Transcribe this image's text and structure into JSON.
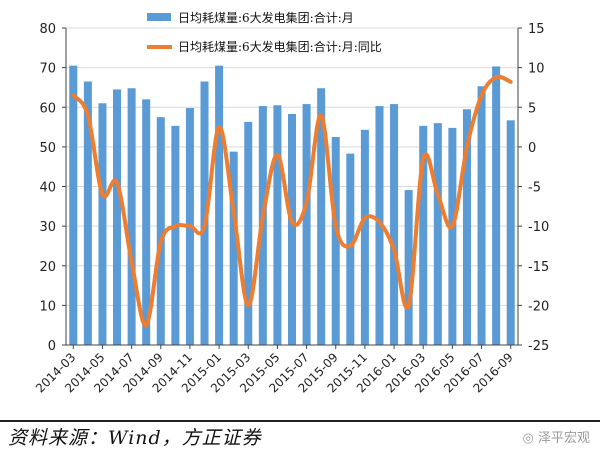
{
  "chart_data": {
    "type": "bar+line",
    "x": [
      "2014-03",
      "2014-04",
      "2014-05",
      "2014-06",
      "2014-07",
      "2014-08",
      "2014-09",
      "2014-10",
      "2014-11",
      "2014-12",
      "2015-01",
      "2015-02",
      "2015-03",
      "2015-04",
      "2015-05",
      "2015-06",
      "2015-07",
      "2015-08",
      "2015-09",
      "2015-10",
      "2015-11",
      "2015-12",
      "2016-01",
      "2016-02",
      "2016-03",
      "2016-04",
      "2016-05",
      "2016-06",
      "2016-07",
      "2016-08",
      "2016-09"
    ],
    "xticks": [
      "2014-03",
      "2014-05",
      "2014-07",
      "2014-09",
      "2014-11",
      "2015-01",
      "2015-03",
      "2015-05",
      "2015-07",
      "2015-09",
      "2015-11",
      "2016-01",
      "2016-03",
      "2016-05",
      "2016-07",
      "2016-09"
    ],
    "series": [
      {
        "name": "日均耗煤量:6大发电集团:合计:月",
        "type": "bar",
        "axis": "left",
        "values": [
          70.5,
          66.5,
          61,
          64.5,
          64.8,
          62,
          57.5,
          55.3,
          59.8,
          66.5,
          70.5,
          48.8,
          56.3,
          60.3,
          60.5,
          58.3,
          60.8,
          64.8,
          52.5,
          48.3,
          54.3,
          60.3,
          60.8,
          39.1,
          55.3,
          56,
          54.8,
          59.5,
          65.3,
          70.3,
          56.7
        ]
      },
      {
        "name": "日均耗煤量:6大发电集团:合计:月:同比",
        "type": "line",
        "axis": "right",
        "values": [
          6.5,
          4,
          -6,
          -4.5,
          -14.5,
          -22.5,
          -12,
          -10,
          -10,
          -10,
          2.5,
          -8.2,
          -20,
          -8.8,
          -1,
          -9.5,
          -7,
          4,
          -10,
          -12.5,
          -9,
          -9.5,
          -13,
          -20,
          -1.5,
          -6,
          -10,
          0,
          6.5,
          8.8,
          8.2
        ]
      }
    ],
    "y_left": {
      "min": 0,
      "max": 80,
      "ticks": [
        0,
        10,
        20,
        30,
        40,
        50,
        60,
        70,
        80
      ]
    },
    "y_right": {
      "min": -25,
      "max": 15,
      "ticks": [
        15,
        10,
        5,
        0,
        -5,
        -10,
        -15,
        -20,
        -25
      ]
    },
    "legend_position": "top",
    "colors": {
      "bar": "#5b9bd5",
      "line": "#ed7d31"
    }
  },
  "footer": {
    "source": "资料来源：Wind，方正证券",
    "watermark": "泽平宏观"
  }
}
